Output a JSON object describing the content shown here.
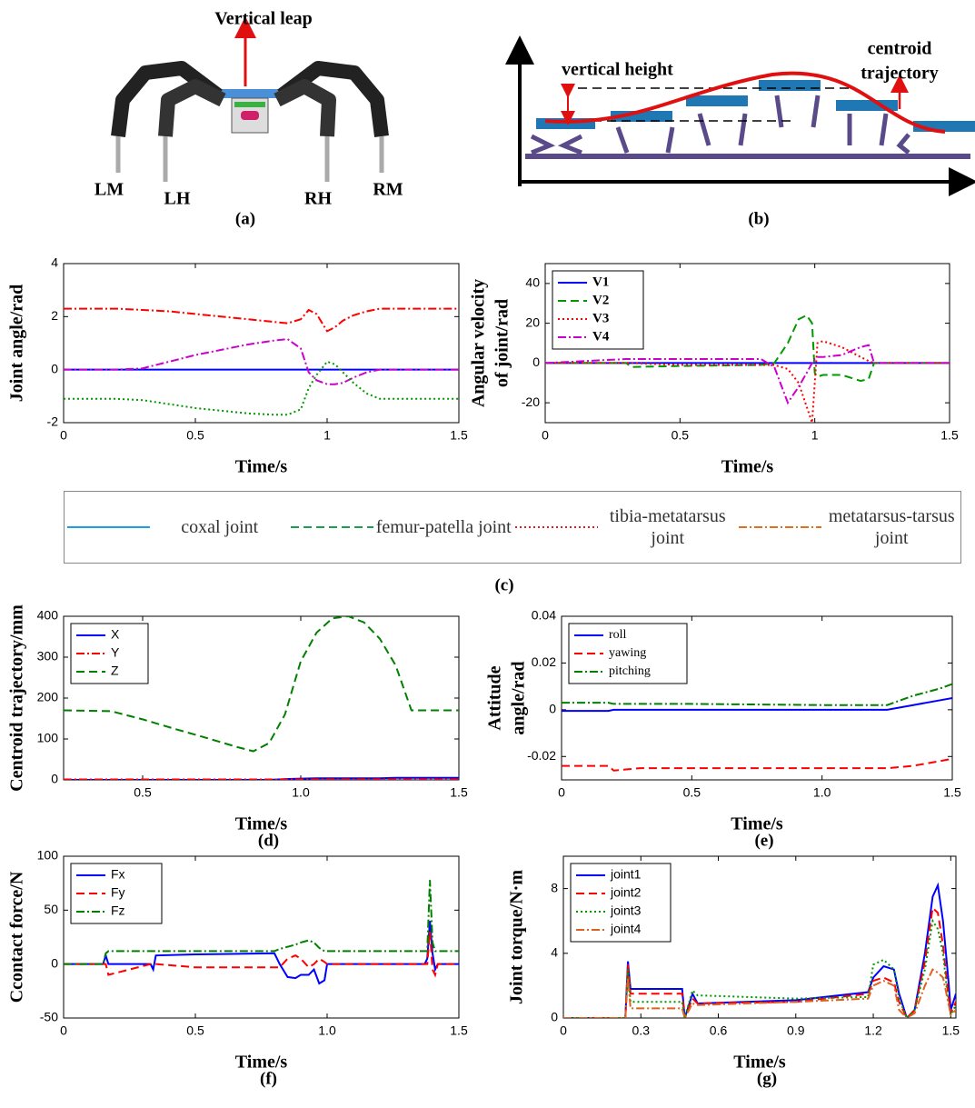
{
  "diagrams": {
    "a": {
      "arrow_label": "Vertical leap",
      "legs": [
        "LM",
        "LH",
        "RH",
        "RM"
      ],
      "caption": "(a)"
    },
    "b": {
      "height_label": "vertical height",
      "trajectory_label": [
        "centroid",
        "trajectory"
      ],
      "caption": "(b)"
    }
  },
  "shared_legend": {
    "entries": [
      {
        "name": "coxal joint",
        "color": "#1ba1e2",
        "dash": "solid"
      },
      {
        "name": "femur-patella joint",
        "color": "#1a9e50",
        "dash": "dashed"
      },
      {
        "name": "tibia-metatarsus joint",
        "color": "#e02020",
        "dash": "dotted"
      },
      {
        "name": "metatarsus-tarsus joint",
        "color": "#e07020",
        "dash": "dashdot"
      }
    ],
    "caption": "(c)"
  },
  "chart_data": [
    {
      "type": "line",
      "ylabel": "Joint angle/rad",
      "xlabel": "Time/s",
      "xlim": [
        0,
        1.5
      ],
      "xticks": [
        0,
        0.5,
        1,
        1.5
      ],
      "ylim": [
        -2,
        4
      ],
      "yticks": [
        -2,
        0,
        2,
        4
      ],
      "x": [
        0,
        0.1,
        0.2,
        0.3,
        0.4,
        0.5,
        0.6,
        0.7,
        0.8,
        0.85,
        0.9,
        0.93,
        0.96,
        1.0,
        1.03,
        1.06,
        1.1,
        1.15,
        1.2,
        1.3,
        1.4,
        1.5
      ],
      "series": [
        {
          "color": "#0000ff",
          "dash": "solid",
          "values": [
            0,
            0,
            0,
            0,
            0,
            0,
            0,
            0,
            0,
            0,
            0,
            0,
            0,
            0,
            0,
            0,
            0,
            0,
            0,
            0,
            0,
            0
          ]
        },
        {
          "color": "#ff0000",
          "dash": "dashdot",
          "values": [
            2.3,
            2.3,
            2.3,
            2.25,
            2.2,
            2.1,
            2.0,
            1.9,
            1.8,
            1.75,
            1.9,
            2.25,
            2.1,
            1.45,
            1.6,
            1.85,
            2.05,
            2.2,
            2.3,
            2.3,
            2.3,
            2.3
          ]
        },
        {
          "color": "#cc00cc",
          "dash": "dashdot",
          "values": [
            0,
            0,
            0,
            0.05,
            0.3,
            0.55,
            0.75,
            0.95,
            1.1,
            1.15,
            0.8,
            -0.1,
            -0.4,
            -0.55,
            -0.55,
            -0.5,
            -0.3,
            -0.1,
            0,
            0,
            0,
            0
          ]
        },
        {
          "color": "#009900",
          "dash": "dotted",
          "values": [
            -1.1,
            -1.1,
            -1.1,
            -1.15,
            -1.3,
            -1.45,
            -1.55,
            -1.65,
            -1.7,
            -1.7,
            -1.5,
            -0.7,
            -0.2,
            0.3,
            0.2,
            -0.1,
            -0.5,
            -0.9,
            -1.1,
            -1.1,
            -1.1,
            -1.1
          ]
        }
      ]
    },
    {
      "type": "line",
      "ylabel": [
        "Angular velocity",
        "of joint/rad"
      ],
      "xlabel": "Time/s",
      "xlim": [
        0,
        1.5
      ],
      "xticks": [
        0,
        0.5,
        1,
        1.5
      ],
      "ylim": [
        -30,
        50
      ],
      "yticks": [
        -20,
        0,
        20,
        40
      ],
      "legend": "upper left",
      "x": [
        0,
        0.3,
        0.32,
        0.5,
        0.8,
        0.85,
        0.9,
        0.94,
        0.97,
        0.99,
        1.0,
        1.01,
        1.03,
        1.1,
        1.17,
        1.2,
        1.22,
        1.5
      ],
      "series": [
        {
          "name": "V1",
          "color": "#0000ff",
          "dash": "solid",
          "values": [
            0,
            0,
            0,
            0,
            0,
            0,
            0,
            0,
            0,
            0,
            0,
            0,
            0,
            0,
            0,
            0,
            0,
            0
          ]
        },
        {
          "name": "V2",
          "color": "#009900",
          "dash": "dashed",
          "values": [
            0,
            0,
            -2,
            -1.5,
            -1,
            0,
            10,
            22,
            24,
            20,
            -5,
            -7,
            -6,
            -6,
            -9,
            -8,
            0,
            0
          ]
        },
        {
          "name": "V3",
          "color": "#ff0000",
          "dash": "dotted",
          "values": [
            0,
            0,
            0,
            -1,
            -1,
            -1,
            -3,
            -10,
            -22,
            -30,
            -10,
            10,
            11,
            8,
            3,
            1,
            0,
            0
          ]
        },
        {
          "name": "V4",
          "color": "#cc00cc",
          "dash": "dashdot",
          "values": [
            0,
            2,
            2,
            2,
            2,
            -2,
            -20,
            -12,
            -5,
            0,
            2,
            3,
            3,
            4,
            8,
            9,
            0,
            0
          ]
        }
      ]
    },
    {
      "type": "line",
      "ylabel": "Centroid trajectory/mm",
      "xlabel": "Time/s",
      "caption": "(d)",
      "xlim": [
        0.25,
        1.5
      ],
      "xticks": [
        0.5,
        {
          "value": 1,
          "label": "1.0"
        },
        1.5
      ],
      "ylim": [
        0,
        400
      ],
      "yticks": [
        0,
        100,
        200,
        300,
        400
      ],
      "legend": "upper left",
      "x": [
        0.25,
        0.4,
        0.5,
        0.6,
        0.7,
        0.8,
        0.85,
        0.9,
        0.95,
        1.0,
        1.05,
        1.1,
        1.15,
        1.2,
        1.25,
        1.3,
        1.35,
        1.4,
        1.5
      ],
      "series": [
        {
          "name": "X",
          "color": "#0000ff",
          "dash": "solid",
          "values": [
            0,
            0,
            0,
            0,
            0,
            0,
            0,
            0,
            2,
            3,
            4,
            4,
            4,
            4,
            4,
            5,
            5,
            5,
            5
          ]
        },
        {
          "name": "Y",
          "color": "#ff0000",
          "dash": "dashdot",
          "values": [
            1,
            1,
            1,
            1,
            1,
            1,
            1,
            1,
            1,
            1,
            1,
            1,
            1,
            1,
            1,
            1,
            1,
            1,
            1
          ]
        },
        {
          "name": "Z",
          "color": "#008000",
          "dash": "dashed",
          "values": [
            170,
            168,
            148,
            125,
            103,
            80,
            70,
            90,
            160,
            290,
            360,
            395,
            400,
            385,
            345,
            280,
            170,
            170,
            170
          ]
        }
      ]
    },
    {
      "type": "line",
      "ylabel": [
        "Attitude",
        "angle/rad"
      ],
      "xlabel": "Time/s",
      "caption": "(e)",
      "xlim": [
        0,
        1.5
      ],
      "xticks": [
        0,
        0.5,
        {
          "value": 1,
          "label": "1.0"
        },
        1.5
      ],
      "ylim": [
        -0.03,
        0.04
      ],
      "yticks": [
        -0.02,
        0,
        0.02,
        0.04
      ],
      "legend": "upper left",
      "x": [
        0,
        0.18,
        0.2,
        0.3,
        0.5,
        1.0,
        1.25,
        1.35,
        1.45,
        1.5
      ],
      "series": [
        {
          "name": "roll",
          "color": "#0000ff",
          "dash": "solid",
          "values": [
            -0.0005,
            -0.0005,
            0,
            0,
            0,
            0,
            0,
            0.002,
            0.004,
            0.005
          ]
        },
        {
          "name": "yawing",
          "color": "#ff0000",
          "dash": "dashed",
          "values": [
            -0.024,
            -0.024,
            -0.026,
            -0.025,
            -0.025,
            -0.025,
            -0.025,
            -0.024,
            -0.022,
            -0.021
          ]
        },
        {
          "name": "pitching",
          "color": "#008000",
          "dash": "dashdot",
          "values": [
            0.003,
            0.003,
            0.0025,
            0.0025,
            0.0025,
            0.002,
            0.002,
            0.006,
            0.009,
            0.011
          ]
        }
      ]
    },
    {
      "type": "line",
      "ylabel": "Ccontact force/N",
      "xlabel": "Time/s",
      "caption": "(f)",
      "xlim": [
        0,
        1.5
      ],
      "xticks": [
        0,
        0.5,
        {
          "value": 1,
          "label": "1.0"
        },
        1.5
      ],
      "ylim": [
        -50,
        100
      ],
      "yticks": [
        -50,
        0,
        50,
        100
      ],
      "legend": "upper left",
      "x": [
        0,
        0.15,
        0.16,
        0.17,
        0.33,
        0.34,
        0.35,
        0.5,
        0.8,
        0.82,
        0.85,
        0.88,
        0.9,
        0.93,
        0.95,
        0.97,
        0.99,
        1.0,
        1.37,
        1.38,
        1.39,
        1.4,
        1.41,
        1.42,
        1.5
      ],
      "series": [
        {
          "name": "Fx",
          "color": "#0000ff",
          "dash": "solid",
          "values": [
            0,
            0,
            8,
            0,
            0,
            -5,
            8,
            9,
            10,
            0,
            -12,
            -13,
            -10,
            -10,
            -5,
            -18,
            -15,
            0,
            0,
            5,
            40,
            10,
            -5,
            0,
            0
          ]
        },
        {
          "name": "Fy",
          "color": "#ff0000",
          "dash": "dashed",
          "values": [
            0,
            0,
            0,
            -10,
            0,
            0,
            0,
            -3,
            -3,
            -3,
            5,
            8,
            5,
            -3,
            0,
            5,
            2,
            0,
            0,
            0,
            30,
            -5,
            -10,
            0,
            0
          ]
        },
        {
          "name": "Fz",
          "color": "#008000",
          "dash": "dashdot",
          "values": [
            0,
            0,
            10,
            12,
            12,
            12,
            12,
            12,
            12,
            14,
            16,
            18,
            20,
            22,
            20,
            15,
            12,
            12,
            12,
            12,
            78,
            20,
            12,
            12,
            12
          ]
        }
      ]
    },
    {
      "type": "line",
      "ylabel": "Joint torque/N·m",
      "xlabel": "Time/s",
      "caption": "(g)",
      "xlim": [
        0,
        1.52
      ],
      "xticks": [
        0,
        0.3,
        0.6,
        0.9,
        1.2,
        1.5
      ],
      "ylim": [
        0,
        10
      ],
      "yticks": [
        0,
        4,
        8
      ],
      "legend": "upper left",
      "x": [
        0,
        0.24,
        0.25,
        0.26,
        0.46,
        0.47,
        0.5,
        0.52,
        0.9,
        1.18,
        1.2,
        1.24,
        1.28,
        1.3,
        1.33,
        1.36,
        1.4,
        1.43,
        1.45,
        1.47,
        1.49,
        1.5,
        1.52
      ],
      "series": [
        {
          "name": "joint1",
          "color": "#0000ff",
          "dash": "solid",
          "values": [
            0,
            0,
            3.5,
            1.8,
            1.8,
            0,
            1.5,
            0.9,
            1.1,
            1.6,
            2.5,
            3.2,
            3.0,
            1.5,
            0,
            0.5,
            4,
            7.5,
            8.2,
            6,
            2.5,
            0.5,
            1.5
          ]
        },
        {
          "name": "joint2",
          "color": "#ff0000",
          "dash": "dashed",
          "values": [
            0,
            0,
            3.3,
            1.5,
            1.5,
            0,
            1.2,
            0.9,
            1.0,
            1.5,
            2.3,
            2.5,
            2.2,
            1.0,
            0,
            0.5,
            3.5,
            6.8,
            6.5,
            4.5,
            1.5,
            0.3,
            1.0
          ]
        },
        {
          "name": "joint3",
          "color": "#009900",
          "dash": "dotted",
          "values": [
            0,
            0,
            3.0,
            1.0,
            1.0,
            0,
            1.7,
            1.4,
            1.2,
            1.3,
            3.3,
            3.6,
            3.0,
            1.2,
            0,
            0.5,
            3,
            6,
            5.5,
            4,
            1,
            0.2,
            0.8
          ]
        },
        {
          "name": "joint4",
          "color": "#e06020",
          "dash": "dashdot",
          "values": [
            0,
            0,
            2.5,
            0.6,
            0.6,
            0,
            0.9,
            0.8,
            1.0,
            1.2,
            2.0,
            2.3,
            2.0,
            0.5,
            0,
            0.3,
            2,
            3,
            2.8,
            2.5,
            1,
            0.2,
            0.5
          ]
        }
      ]
    }
  ]
}
